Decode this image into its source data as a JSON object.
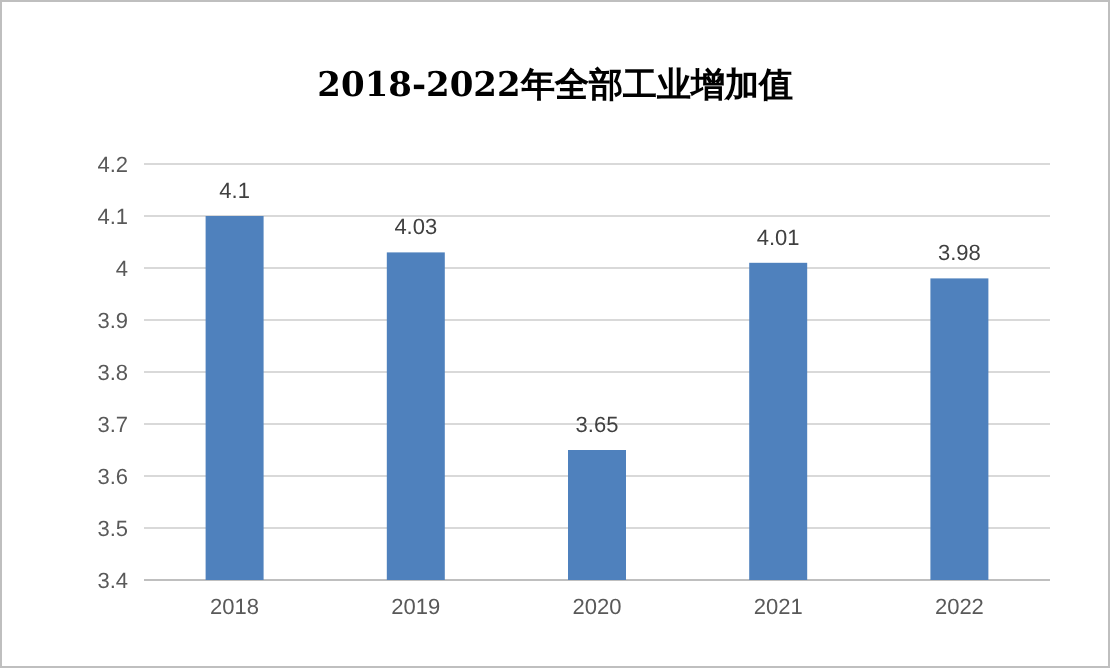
{
  "chart_data": {
    "type": "bar",
    "title": "2018-2022年全部工业增加值",
    "categories": [
      "2018",
      "2019",
      "2020",
      "2021",
      "2022"
    ],
    "values": [
      4.1,
      4.03,
      3.65,
      4.01,
      3.98
    ],
    "color": "#4f81bd",
    "ylim": [
      3.4,
      4.2
    ],
    "yticks": [
      3.4,
      3.5,
      3.6,
      3.7,
      3.8,
      3.9,
      4,
      4.1,
      4.2
    ],
    "grid": "y",
    "data_labels": true
  }
}
